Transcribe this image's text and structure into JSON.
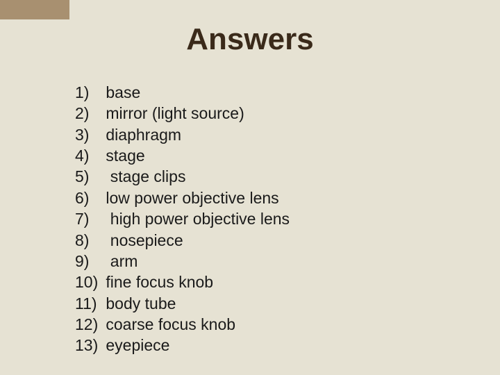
{
  "background_color": "#e6e2d3",
  "tab_color": "#a89070",
  "title": {
    "text": "Answers",
    "font_family": "Comic Sans MS",
    "font_size_pt": 33,
    "font_weight": "bold",
    "color": "#3a2a1a"
  },
  "answers": {
    "font_family": "Comic Sans MS",
    "font_size_pt": 17,
    "color": "#1a1a1a",
    "items": [
      {
        "n": "1)",
        "text": "base"
      },
      {
        "n": "2)",
        "text": "mirror (light source)"
      },
      {
        "n": "3)",
        "text": "diaphragm"
      },
      {
        "n": "4)",
        "text": "stage"
      },
      {
        "n": "5)",
        "text": " stage clips"
      },
      {
        "n": "6)",
        "text": "low power objective lens"
      },
      {
        "n": "7)",
        "text": " high power objective lens"
      },
      {
        "n": "8)",
        "text": " nosepiece"
      },
      {
        "n": "9)",
        "text": " arm"
      },
      {
        "n": "10)",
        "text": "fine focus knob"
      },
      {
        "n": "11)",
        "text": "body tube"
      },
      {
        "n": "12)",
        "text": "coarse focus knob"
      },
      {
        "n": "13)",
        "text": "eyepiece"
      }
    ]
  }
}
